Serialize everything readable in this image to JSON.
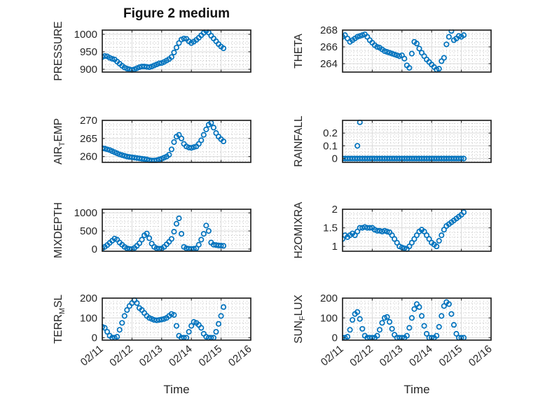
{
  "title": "Figure 2 medium",
  "xlabel": "Time",
  "marker_color": "#0072BD",
  "axis_color": "#262626",
  "grid_color": "#d9d9d9",
  "minor_grid_color": "#bfbfbf",
  "x_axis": {
    "lim": [
      0,
      5
    ],
    "ticks": [
      0,
      1,
      2,
      3,
      4,
      5
    ],
    "labels": [
      "02/11",
      "02/12",
      "02/13",
      "02/14",
      "02/15",
      "02/16"
    ],
    "minor_step": 0.125,
    "label_rotation_deg": -40
  },
  "time_series": {
    "t_start": 0,
    "t_step": 0.0833,
    "t_unit": "days since 02/11"
  },
  "chart_data": [
    {
      "type": "scatter",
      "name": "PRESSURE",
      "ylabel_parts": [
        [
          "PRESSURE",
          0
        ]
      ],
      "yticks": [
        900,
        950,
        1000
      ],
      "ylim": [
        892,
        1012
      ],
      "yminor": 12.5,
      "show_x_labels": false,
      "values": [
        935,
        938,
        937,
        933,
        930,
        928,
        922,
        916,
        910,
        905,
        902,
        900,
        898,
        900,
        903,
        906,
        908,
        908,
        907,
        906,
        908,
        911,
        914,
        917,
        918,
        921,
        925,
        929,
        935,
        948,
        962,
        975,
        985,
        988,
        987,
        980,
        975,
        979,
        984,
        990,
        997,
        1004,
        1010,
        1005,
        996,
        988,
        980,
        972,
        965,
        960
      ]
    },
    {
      "type": "scatter",
      "name": "THETA",
      "ylabel_parts": [
        [
          "THETA",
          0
        ]
      ],
      "yticks": [
        264,
        266,
        268
      ],
      "ylim": [
        263,
        268
      ],
      "yminor": 0.5,
      "show_x_labels": false,
      "values": [
        267.2,
        267.4,
        267.0,
        266.6,
        266.8,
        267.0,
        267.2,
        267.3,
        267.4,
        267.5,
        267.2,
        266.8,
        266.5,
        266.2,
        266.0,
        265.9,
        265.7,
        265.5,
        265.4,
        265.3,
        265.2,
        265.1,
        265.0,
        264.9,
        265.0,
        264.6,
        263.8,
        263.5,
        265.2,
        266.6,
        266.4,
        265.8,
        265.3,
        264.9,
        264.5,
        264.2,
        263.9,
        263.6,
        263.3,
        263.4,
        264.3,
        264.7,
        266.3,
        267.2,
        267.9,
        266.8,
        267.0,
        267.3,
        267.2,
        267.4
      ]
    },
    {
      "type": "scatter",
      "name": "AIR_TEMP",
      "ylabel_parts": [
        [
          "AIR",
          0
        ],
        [
          "T",
          1
        ],
        [
          "EMP",
          0
        ]
      ],
      "yticks": [
        260,
        265,
        270
      ],
      "ylim": [
        258.4,
        270
      ],
      "yminor": 1.25,
      "show_x_labels": false,
      "values": [
        262.3,
        262.2,
        262.0,
        261.8,
        261.5,
        261.2,
        260.9,
        260.6,
        260.4,
        260.2,
        260.0,
        259.9,
        259.8,
        259.7,
        259.6,
        259.5,
        259.4,
        259.3,
        259.2,
        259.0,
        258.9,
        258.9,
        259.0,
        259.2,
        259.4,
        259.7,
        260.0,
        260.5,
        262.0,
        264.0,
        265.5,
        266.0,
        265.0,
        263.5,
        262.8,
        262.5,
        262.4,
        262.6,
        262.8,
        263.5,
        264.5,
        266.0,
        267.5,
        268.8,
        269.3,
        268.0,
        266.5,
        265.5,
        264.8,
        264.2
      ]
    },
    {
      "type": "scatter",
      "name": "RAINFALL",
      "ylabel_parts": [
        [
          "RAINFALL",
          0
        ]
      ],
      "yticks": [
        0,
        0.1,
        0.2
      ],
      "ylim": [
        -0.03,
        0.3
      ],
      "yminor": 0.025,
      "show_x_labels": false,
      "values": [
        0,
        0,
        0,
        0,
        0,
        0,
        0,
        0,
        0,
        0,
        0,
        0,
        0,
        0,
        0,
        0,
        0,
        0,
        0,
        0,
        0,
        0,
        0,
        0,
        0,
        0,
        0,
        0,
        0,
        0,
        0,
        0,
        0,
        0,
        0,
        0,
        0,
        0,
        0,
        0,
        0,
        0,
        0,
        0,
        0,
        0,
        0,
        0,
        0,
        0
      ],
      "extra_points": [
        [
          0.5,
          0.1
        ],
        [
          0.583,
          0.285
        ]
      ]
    },
    {
      "type": "scatter",
      "name": "MIXDEPTH",
      "ylabel_parts": [
        [
          "MIXDEPTH",
          0
        ]
      ],
      "yticks": [
        0,
        500,
        1000
      ],
      "ylim": [
        -60,
        1100
      ],
      "yminor": 125,
      "show_x_labels": false,
      "values": [
        20,
        60,
        110,
        170,
        230,
        290,
        260,
        180,
        120,
        60,
        20,
        5,
        0,
        30,
        90,
        160,
        260,
        380,
        430,
        300,
        150,
        60,
        20,
        10,
        15,
        60,
        130,
        200,
        280,
        480,
        700,
        850,
        420,
        60,
        20,
        10,
        5,
        10,
        20,
        120,
        260,
        420,
        650,
        500,
        180,
        120,
        110,
        100,
        95,
        90
      ]
    },
    {
      "type": "scatter",
      "name": "H2OMIXRA",
      "ylabel_parts": [
        [
          "H2OMIXRA",
          0
        ]
      ],
      "yticks": [
        1,
        1.5,
        2
      ],
      "ylim": [
        0.87,
        2.0
      ],
      "yminor": 0.125,
      "show_x_labels": false,
      "values": [
        1.2,
        1.3,
        1.25,
        1.3,
        1.35,
        1.3,
        1.4,
        1.5,
        1.5,
        1.52,
        1.5,
        1.5,
        1.5,
        1.45,
        1.42,
        1.42,
        1.4,
        1.42,
        1.4,
        1.38,
        1.3,
        1.2,
        1.1,
        1.0,
        0.97,
        0.95,
        0.93,
        1.0,
        1.1,
        1.2,
        1.3,
        1.4,
        1.45,
        1.4,
        1.3,
        1.2,
        1.1,
        1.05,
        1.0,
        1.15,
        1.3,
        1.45,
        1.55,
        1.6,
        1.65,
        1.7,
        1.75,
        1.8,
        1.85,
        1.92
      ]
    },
    {
      "type": "scatter",
      "name": "TERR_MSL",
      "ylabel_parts": [
        [
          "TERR",
          0
        ],
        [
          "M",
          1
        ],
        [
          "SL",
          0
        ]
      ],
      "yticks": [
        0,
        100,
        200
      ],
      "ylim": [
        -12,
        200
      ],
      "yminor": 25,
      "show_x_labels": true,
      "values": [
        55,
        50,
        30,
        10,
        0,
        0,
        5,
        40,
        75,
        110,
        140,
        160,
        175,
        190,
        175,
        150,
        140,
        125,
        110,
        100,
        95,
        90,
        88,
        90,
        92,
        95,
        100,
        110,
        120,
        115,
        60,
        10,
        0,
        0,
        0,
        30,
        60,
        80,
        75,
        65,
        50,
        20,
        5,
        0,
        0,
        0,
        30,
        70,
        110,
        155
      ]
    },
    {
      "type": "scatter",
      "name": "SUN_FLUX",
      "ylabel_parts": [
        [
          "SUN",
          0
        ],
        [
          "F",
          1
        ],
        [
          "LUX",
          0
        ]
      ],
      "yticks": [
        0,
        100,
        200
      ],
      "ylim": [
        -12,
        200
      ],
      "yminor": 25,
      "show_x_labels": true,
      "values": [
        0,
        0,
        5,
        40,
        90,
        120,
        130,
        95,
        45,
        10,
        0,
        0,
        0,
        0,
        10,
        40,
        75,
        100,
        105,
        80,
        45,
        15,
        0,
        0,
        0,
        0,
        10,
        50,
        100,
        145,
        170,
        155,
        110,
        60,
        20,
        0,
        0,
        0,
        10,
        55,
        110,
        160,
        180,
        170,
        120,
        65,
        20,
        0,
        0,
        0
      ]
    }
  ]
}
